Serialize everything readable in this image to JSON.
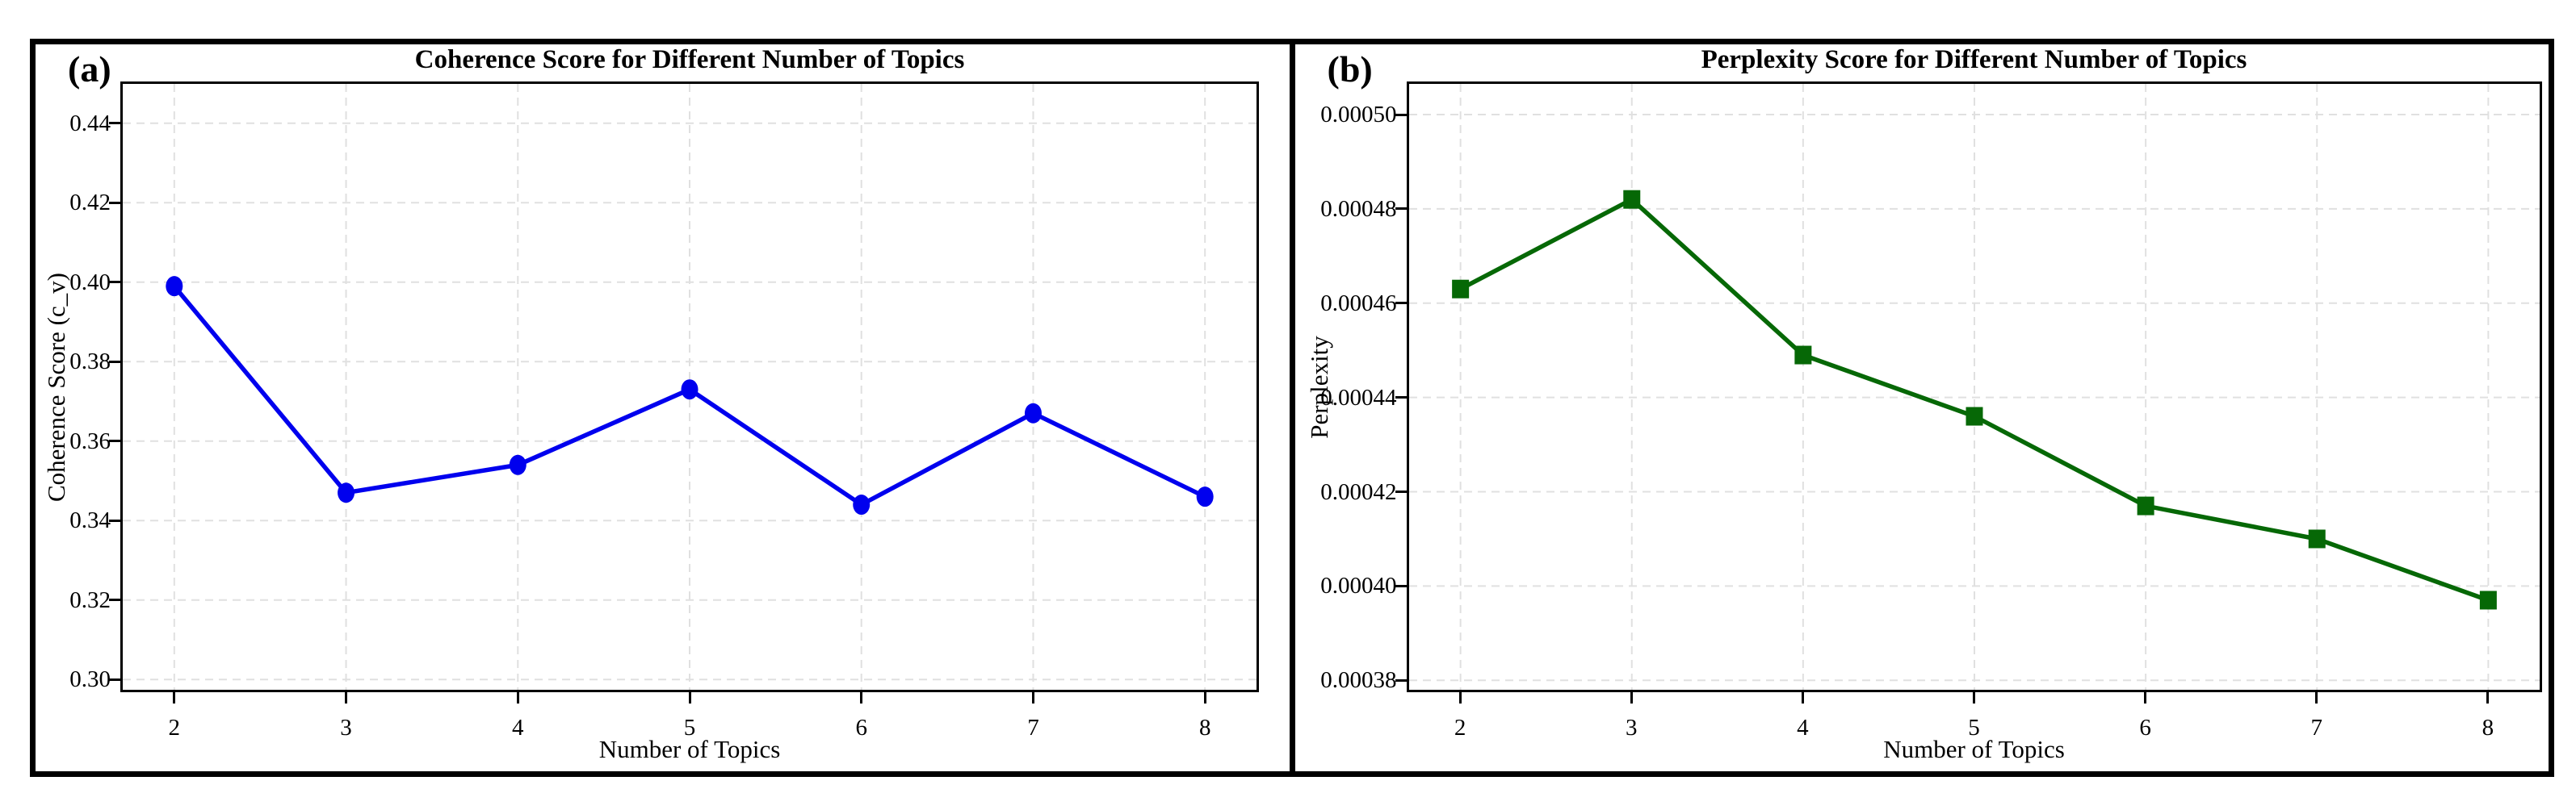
{
  "figure": {
    "background": "#ffffff",
    "border_color": "#000000",
    "grid_color": "#e0e0e0"
  },
  "chart_data": [
    {
      "type": "line",
      "corner_label": "(a)",
      "title": "Coherence Score for Different Number of Topics",
      "xlabel": "Number of Topics",
      "ylabel": "Coherence Score (c_v)",
      "color": "#0000ee",
      "marker": "circle",
      "grid": true,
      "legend": "none",
      "x": [
        2,
        3,
        4,
        5,
        6,
        7,
        8
      ],
      "y": [
        0.399,
        0.347,
        0.354,
        0.373,
        0.344,
        0.367,
        0.346
      ],
      "xlim": [
        1.7,
        8.3
      ],
      "ylim": [
        0.2974,
        0.4499
      ],
      "xticks": [
        {
          "value": 2,
          "label": "2"
        },
        {
          "value": 3,
          "label": "3"
        },
        {
          "value": 4,
          "label": "4"
        },
        {
          "value": 5,
          "label": "5"
        },
        {
          "value": 6,
          "label": "6"
        },
        {
          "value": 7,
          "label": "7"
        },
        {
          "value": 8,
          "label": "8"
        }
      ],
      "yticks": [
        {
          "value": 0.3,
          "label": "0.30"
        },
        {
          "value": 0.32,
          "label": "0.32"
        },
        {
          "value": 0.34,
          "label": "0.34"
        },
        {
          "value": 0.36,
          "label": "0.36"
        },
        {
          "value": 0.38,
          "label": "0.38"
        },
        {
          "value": 0.4,
          "label": "0.40"
        },
        {
          "value": 0.42,
          "label": "0.42"
        },
        {
          "value": 0.44,
          "label": "0.44"
        }
      ]
    },
    {
      "type": "line",
      "corner_label": "(b)",
      "title": "Perplexity Score for Different Number of Topics",
      "xlabel": "Number of Topics",
      "ylabel": "Perplexity",
      "color": "#066806",
      "marker": "square",
      "grid": true,
      "legend": "none",
      "x": [
        2,
        3,
        4,
        5,
        6,
        7,
        8
      ],
      "y": [
        0.000463,
        0.000482,
        0.000449,
        0.000436,
        0.000417,
        0.00041,
        0.000397
      ],
      "xlim": [
        1.7,
        8.3
      ],
      "ylim": [
        0.000378,
        0.0005065
      ],
      "xticks": [
        {
          "value": 2,
          "label": "2"
        },
        {
          "value": 3,
          "label": "3"
        },
        {
          "value": 4,
          "label": "4"
        },
        {
          "value": 5,
          "label": "5"
        },
        {
          "value": 6,
          "label": "6"
        },
        {
          "value": 7,
          "label": "7"
        },
        {
          "value": 8,
          "label": "8"
        }
      ],
      "yticks": [
        {
          "value": 0.00038,
          "label": "0.00038"
        },
        {
          "value": 0.0004,
          "label": "0.00040"
        },
        {
          "value": 0.00042,
          "label": "0.00042"
        },
        {
          "value": 0.00044,
          "label": "0.00044"
        },
        {
          "value": 0.00046,
          "label": "0.00046"
        },
        {
          "value": 0.00048,
          "label": "0.00048"
        },
        {
          "value": 0.0005,
          "label": "0.00050"
        }
      ]
    }
  ]
}
